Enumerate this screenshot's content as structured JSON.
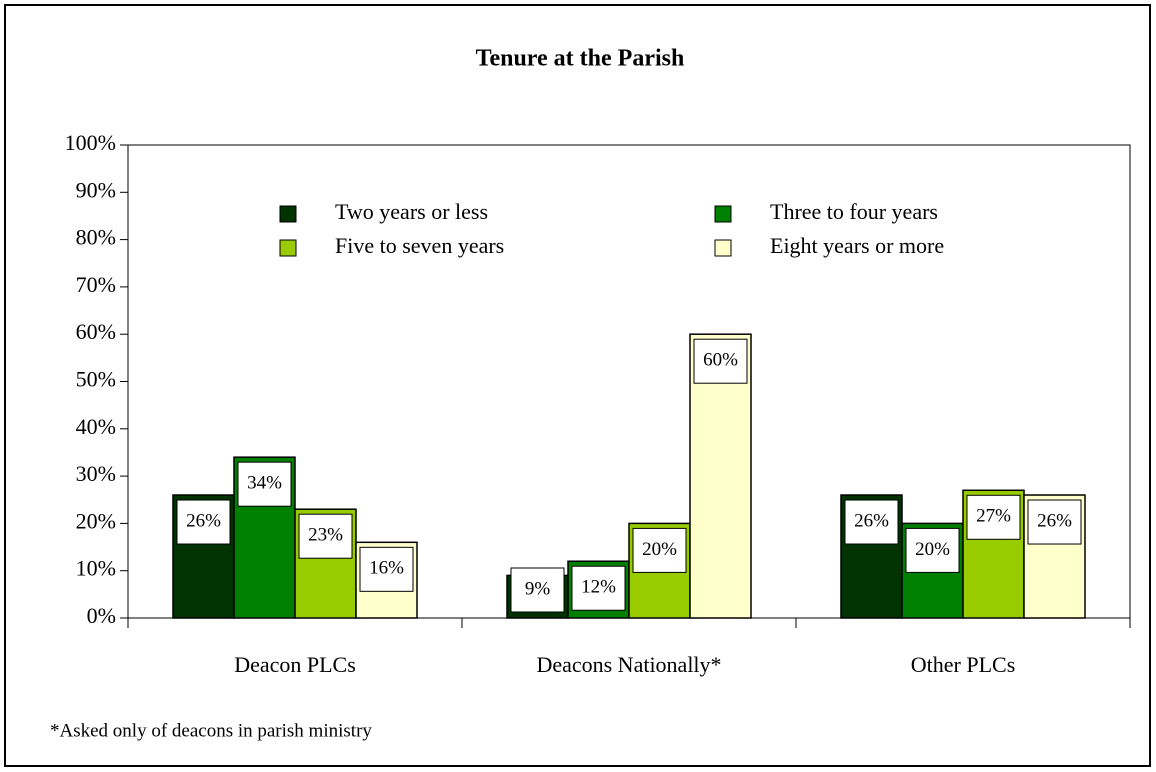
{
  "chart_data": {
    "type": "bar",
    "title": "Tenure at the Parish",
    "footnote": "*Asked only of deacons in parish ministry",
    "categories": [
      "Deacon PLCs",
      "Deacons Nationally*",
      "Other PLCs"
    ],
    "series": [
      {
        "name": "Two years or less",
        "color": "#003300",
        "values": [
          26,
          9,
          26
        ],
        "value_labels": [
          "26%",
          "9%",
          "26%"
        ]
      },
      {
        "name": "Three to four years",
        "color": "#008000",
        "values": [
          34,
          12,
          20
        ],
        "value_labels": [
          "34%",
          "12%",
          "20%"
        ]
      },
      {
        "name": "Five to seven years",
        "color": "#99cc00",
        "values": [
          23,
          20,
          27
        ],
        "value_labels": [
          "23%",
          "20%",
          "27%"
        ]
      },
      {
        "name": "Eight years or more",
        "color": "#ffffcc",
        "values": [
          16,
          60,
          26
        ],
        "value_labels": [
          "16%",
          "60%",
          "26%"
        ]
      }
    ],
    "ylim": [
      0,
      100
    ],
    "yticks": [
      {
        "value": 0,
        "label": "0%"
      },
      {
        "value": 10,
        "label": "10%"
      },
      {
        "value": 20,
        "label": "20%"
      },
      {
        "value": 30,
        "label": "30%"
      },
      {
        "value": 40,
        "label": "40%"
      },
      {
        "value": 50,
        "label": "50%"
      },
      {
        "value": 60,
        "label": "60%"
      },
      {
        "value": 70,
        "label": "70%"
      },
      {
        "value": 80,
        "label": "80%"
      },
      {
        "value": 90,
        "label": "90%"
      },
      {
        "value": 100,
        "label": "100%"
      }
    ],
    "legend": "top"
  }
}
